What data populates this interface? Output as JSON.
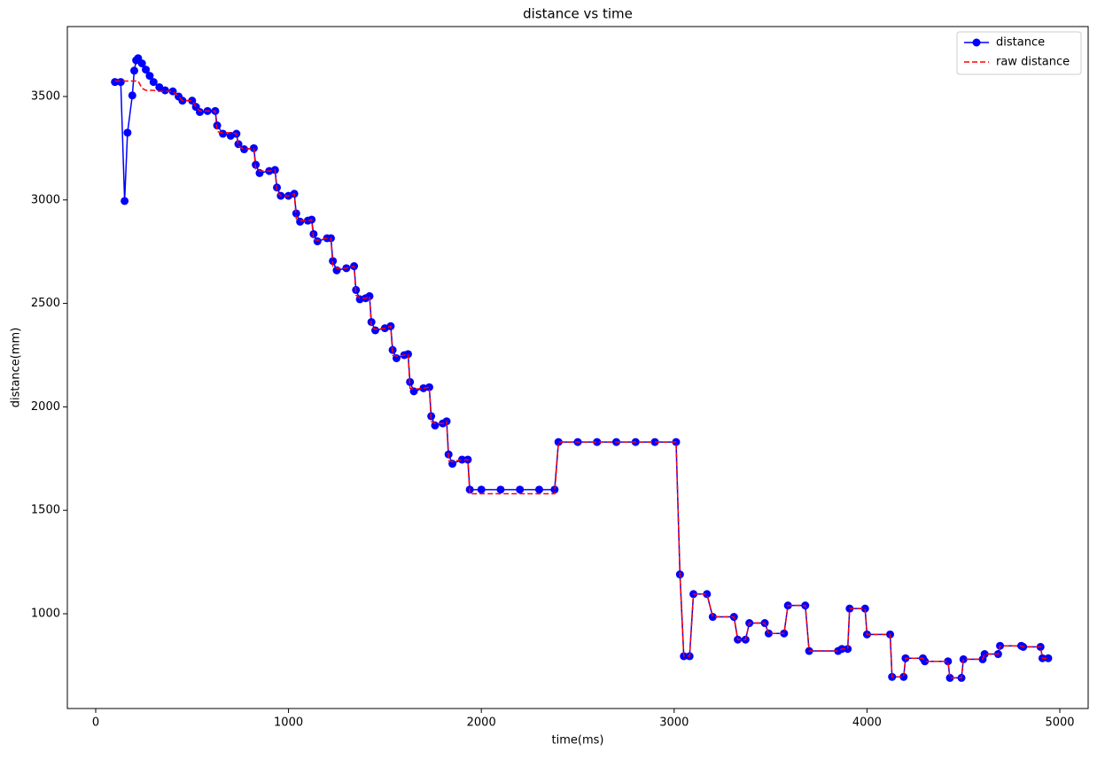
{
  "chart_data": {
    "type": "line",
    "title": "distance vs time",
    "x_label": "time(ms)",
    "y_label": "distance(mm)",
    "x": [
      100,
      130,
      150,
      165,
      190,
      200,
      210,
      220,
      240,
      260,
      280,
      300,
      330,
      360,
      400,
      430,
      450,
      500,
      520,
      540,
      580,
      620,
      630,
      660,
      700,
      730,
      740,
      770,
      820,
      830,
      850,
      900,
      930,
      940,
      960,
      1000,
      1030,
      1040,
      1060,
      1100,
      1120,
      1130,
      1150,
      1200,
      1220,
      1230,
      1250,
      1300,
      1340,
      1350,
      1370,
      1400,
      1420,
      1430,
      1450,
      1500,
      1530,
      1540,
      1560,
      1600,
      1620,
      1630,
      1650,
      1700,
      1730,
      1740,
      1760,
      1800,
      1820,
      1830,
      1850,
      1900,
      1930,
      1940,
      2000,
      2100,
      2200,
      2300,
      2380,
      2400,
      2500,
      2600,
      2700,
      2800,
      2900,
      3010,
      3030,
      3050,
      3080,
      3100,
      3170,
      3200,
      3310,
      3330,
      3370,
      3390,
      3470,
      3490,
      3570,
      3590,
      3680,
      3700,
      3850,
      3870,
      3900,
      3910,
      3990,
      4000,
      4120,
      4130,
      4190,
      4200,
      4290,
      4300,
      4420,
      4430,
      4490,
      4500,
      4600,
      4610,
      4680,
      4690,
      4800,
      4810,
      4900,
      4910,
      4940
    ],
    "series": [
      {
        "name": "distance",
        "color": "#0000ff",
        "style": "solid",
        "marker": true,
        "values": [
          3570,
          3570,
          2995,
          3325,
          3505,
          3625,
          3675,
          3685,
          3660,
          3630,
          3600,
          3570,
          3545,
          3530,
          3525,
          3500,
          3480,
          3480,
          3450,
          3425,
          3430,
          3430,
          3360,
          3320,
          3310,
          3320,
          3270,
          3245,
          3250,
          3170,
          3130,
          3140,
          3145,
          3060,
          3020,
          3020,
          3030,
          2935,
          2895,
          2900,
          2905,
          2835,
          2800,
          2815,
          2815,
          2705,
          2660,
          2670,
          2680,
          2565,
          2520,
          2525,
          2535,
          2410,
          2370,
          2380,
          2390,
          2275,
          2235,
          2250,
          2255,
          2120,
          2075,
          2090,
          2095,
          1955,
          1910,
          1920,
          1930,
          1770,
          1725,
          1745,
          1745,
          1600,
          1600,
          1600,
          1600,
          1600,
          1600,
          1830,
          1830,
          1830,
          1830,
          1830,
          1830,
          1830,
          1190,
          795,
          795,
          1095,
          1095,
          985,
          985,
          875,
          875,
          955,
          955,
          905,
          905,
          1040,
          1040,
          820,
          820,
          830,
          830,
          1025,
          1025,
          900,
          900,
          695,
          695,
          785,
          785,
          770,
          770,
          690,
          690,
          780,
          780,
          805,
          805,
          845,
          845,
          840,
          840,
          785,
          785
        ]
      },
      {
        "name": "raw distance",
        "color": "#ff0000",
        "style": "dashed",
        "marker": false,
        "values": [
          3575,
          3575,
          3575,
          3575,
          3575,
          3575,
          3575,
          3575,
          3540,
          3530,
          3530,
          3530,
          3525,
          3525,
          3525,
          3500,
          3480,
          3480,
          3450,
          3430,
          3430,
          3430,
          3330,
          3325,
          3325,
          3320,
          3260,
          3245,
          3250,
          3150,
          3140,
          3140,
          3145,
          3040,
          3020,
          3020,
          3030,
          2910,
          2900,
          2900,
          2905,
          2810,
          2805,
          2815,
          2815,
          2680,
          2670,
          2670,
          2680,
          2540,
          2525,
          2525,
          2535,
          2385,
          2375,
          2380,
          2390,
          2250,
          2245,
          2250,
          2255,
          2090,
          2085,
          2090,
          2095,
          1930,
          1920,
          1920,
          1930,
          1740,
          1735,
          1745,
          1745,
          1580,
          1580,
          1580,
          1580,
          1580,
          1580,
          1830,
          1830,
          1830,
          1830,
          1830,
          1830,
          1830,
          1190,
          795,
          795,
          1095,
          1095,
          985,
          985,
          875,
          875,
          955,
          955,
          905,
          905,
          1040,
          1040,
          820,
          820,
          830,
          830,
          1025,
          1025,
          900,
          900,
          695,
          695,
          785,
          785,
          770,
          770,
          690,
          690,
          780,
          780,
          805,
          805,
          845,
          845,
          840,
          840,
          785,
          785
        ]
      }
    ],
    "xlim": [
      -147,
      5147
    ],
    "ylim": [
      542,
      3838
    ],
    "xticks": [
      0,
      1000,
      2000,
      3000,
      4000,
      5000
    ],
    "yticks": [
      1000,
      1500,
      2000,
      2500,
      3000,
      3500
    ],
    "legend": "upper right"
  }
}
